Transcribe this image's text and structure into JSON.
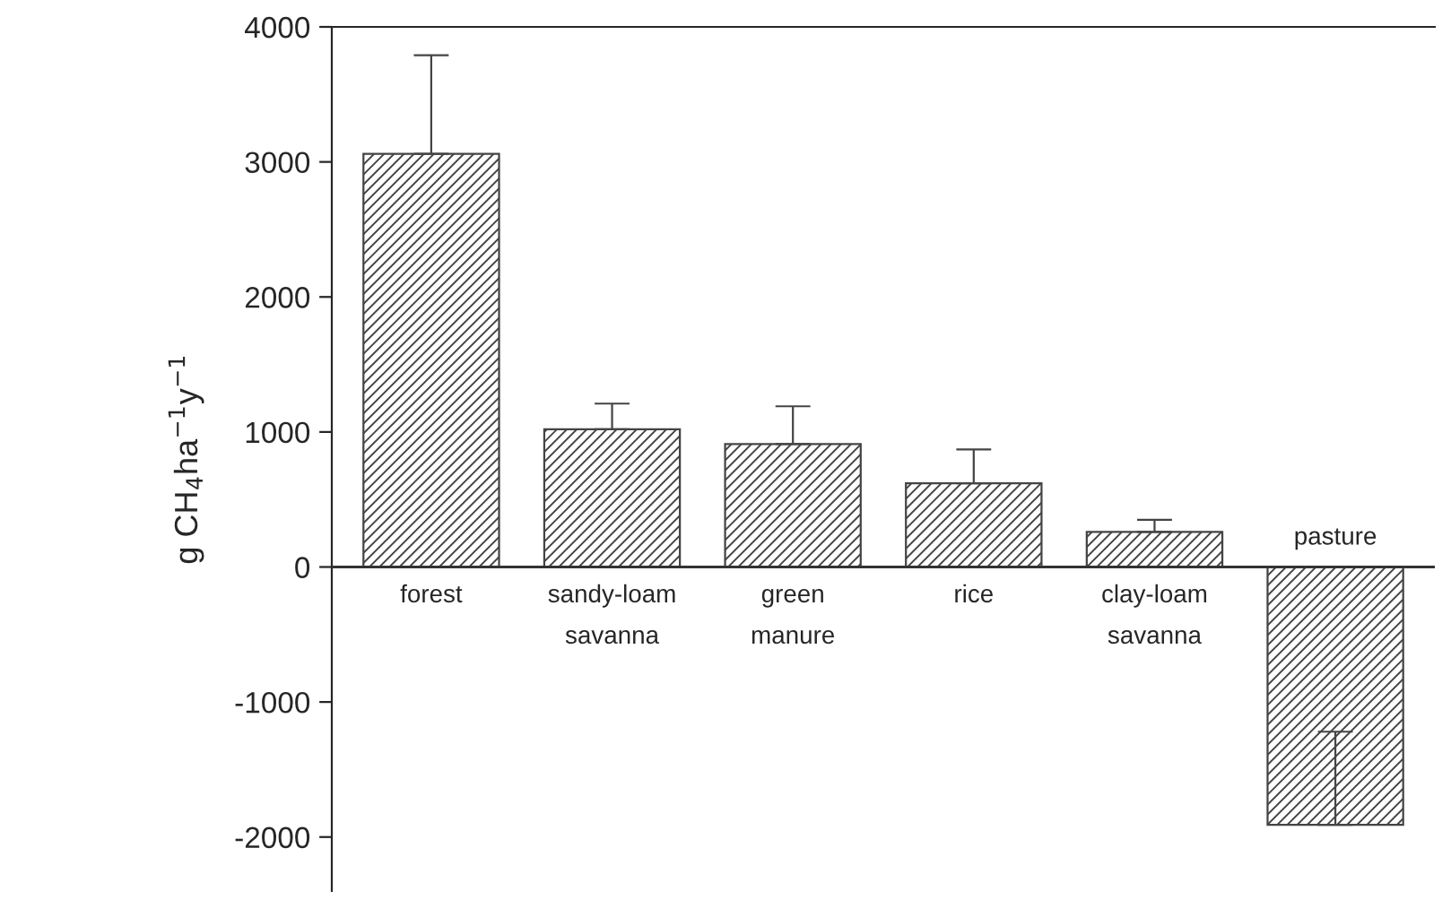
{
  "chart_data": {
    "type": "bar",
    "ylabel": "g CH$_{4}$ha$^{−1}$y$^{−1}$",
    "categories": [
      "forest",
      "sandy-loam\nsavanna",
      "green\nmanure",
      "rice",
      "clay-loam\nsavanna",
      "pasture"
    ],
    "values": [
      3060,
      1020,
      910,
      620,
      260,
      -1910
    ],
    "errors": [
      [
        3060,
        3790
      ],
      [
        1020,
        1210
      ],
      [
        910,
        1190
      ],
      [
        620,
        870
      ],
      [
        260,
        350
      ],
      [
        -1910,
        -1220
      ]
    ],
    "color": "#444444",
    "ylim": [
      -2400,
      4000
    ],
    "yticks": [
      -2000,
      -1000,
      0,
      1000,
      2000,
      3000,
      4000
    ],
    "grid": false,
    "legend": false
  }
}
